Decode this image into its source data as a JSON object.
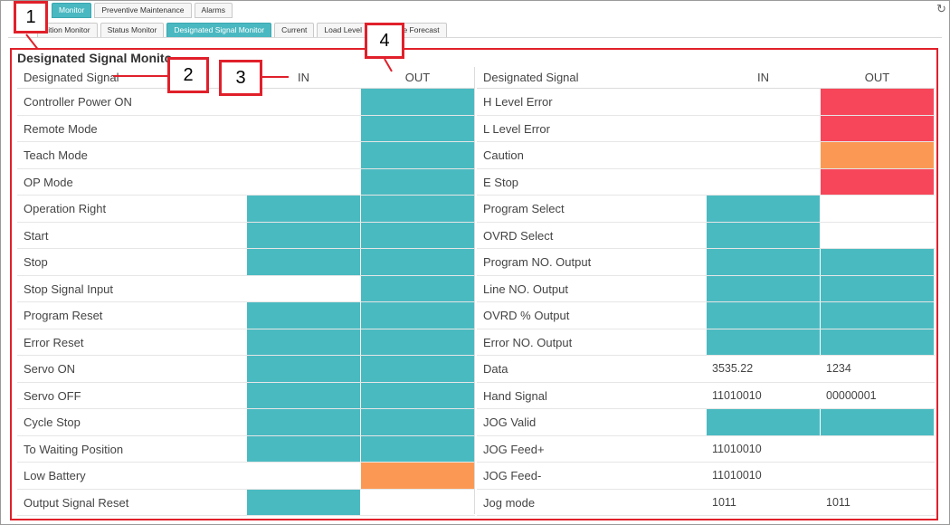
{
  "top_tabs": [
    "Monitor",
    "Preventive Maintenance",
    "Alarms"
  ],
  "sub_tabs": [
    "sition Monitor",
    "Status Monitor",
    "Designated Signal Monitor",
    "Current",
    "Load Level Ratio",
    "ce Forecast"
  ],
  "active_top_tab": 0,
  "active_sub_tab": 2,
  "panel_title": "Designated Signal Monito",
  "headers": {
    "name": "Designated Signal",
    "in": "IN",
    "out": "OUT"
  },
  "colors": {
    "teal": "#4abac1",
    "red": "#f7465a",
    "orange": "#fb9954",
    "callout": "#e0202a"
  },
  "left_rows": [
    {
      "label": "Controller Power ON",
      "in": "",
      "out": "teal"
    },
    {
      "label": "Remote Mode",
      "in": "",
      "out": "teal"
    },
    {
      "label": "Teach Mode",
      "in": "",
      "out": "teal"
    },
    {
      "label": "OP Mode",
      "in": "",
      "out": "teal"
    },
    {
      "label": "Operation Right",
      "in": "teal",
      "out": "teal"
    },
    {
      "label": "Start",
      "in": "teal",
      "out": "teal"
    },
    {
      "label": "Stop",
      "in": "teal",
      "out": "teal"
    },
    {
      "label": "Stop Signal Input",
      "in": "",
      "out": "teal"
    },
    {
      "label": "Program Reset",
      "in": "teal",
      "out": "teal"
    },
    {
      "label": "Error Reset",
      "in": "teal",
      "out": "teal"
    },
    {
      "label": "Servo ON",
      "in": "teal",
      "out": "teal"
    },
    {
      "label": "Servo OFF",
      "in": "teal",
      "out": "teal"
    },
    {
      "label": "Cycle Stop",
      "in": "teal",
      "out": "teal"
    },
    {
      "label": "To Waiting Position",
      "in": "teal",
      "out": "teal"
    },
    {
      "label": "Low Battery",
      "in": "",
      "out": "orange"
    },
    {
      "label": "Output Signal Reset",
      "in": "teal",
      "out": ""
    }
  ],
  "right_rows": [
    {
      "label": "H Level Error",
      "in": "",
      "out": "red"
    },
    {
      "label": "L Level Error",
      "in": "",
      "out": "red"
    },
    {
      "label": "Caution",
      "in": "",
      "out": "orange"
    },
    {
      "label": "E Stop",
      "in": "",
      "out": "red"
    },
    {
      "label": "Program Select",
      "in": "teal",
      "out": ""
    },
    {
      "label": "OVRD Select",
      "in": "teal",
      "out": ""
    },
    {
      "label": "Program NO. Output",
      "in": "teal",
      "out": "teal"
    },
    {
      "label": "Line NO. Output",
      "in": "teal",
      "out": "teal"
    },
    {
      "label": "OVRD % Output",
      "in": "teal",
      "out": "teal"
    },
    {
      "label": "Error NO. Output",
      "in": "teal",
      "out": "teal"
    },
    {
      "label": "Data",
      "in_text": "3535.22",
      "out_text": "1234"
    },
    {
      "label": "Hand Signal",
      "in_text": "11010010",
      "out_text": "00000001"
    },
    {
      "label": "JOG Valid",
      "in": "teal",
      "out": "teal"
    },
    {
      "label": "JOG Feed+",
      "in_text": "11010010",
      "out_text": ""
    },
    {
      "label": "JOG Feed-",
      "in_text": "11010010",
      "out_text": ""
    },
    {
      "label": "Jog mode",
      "in_text": "1011",
      "out_text": "1011"
    }
  ],
  "callouts": [
    "1",
    "2",
    "3",
    "4"
  ]
}
